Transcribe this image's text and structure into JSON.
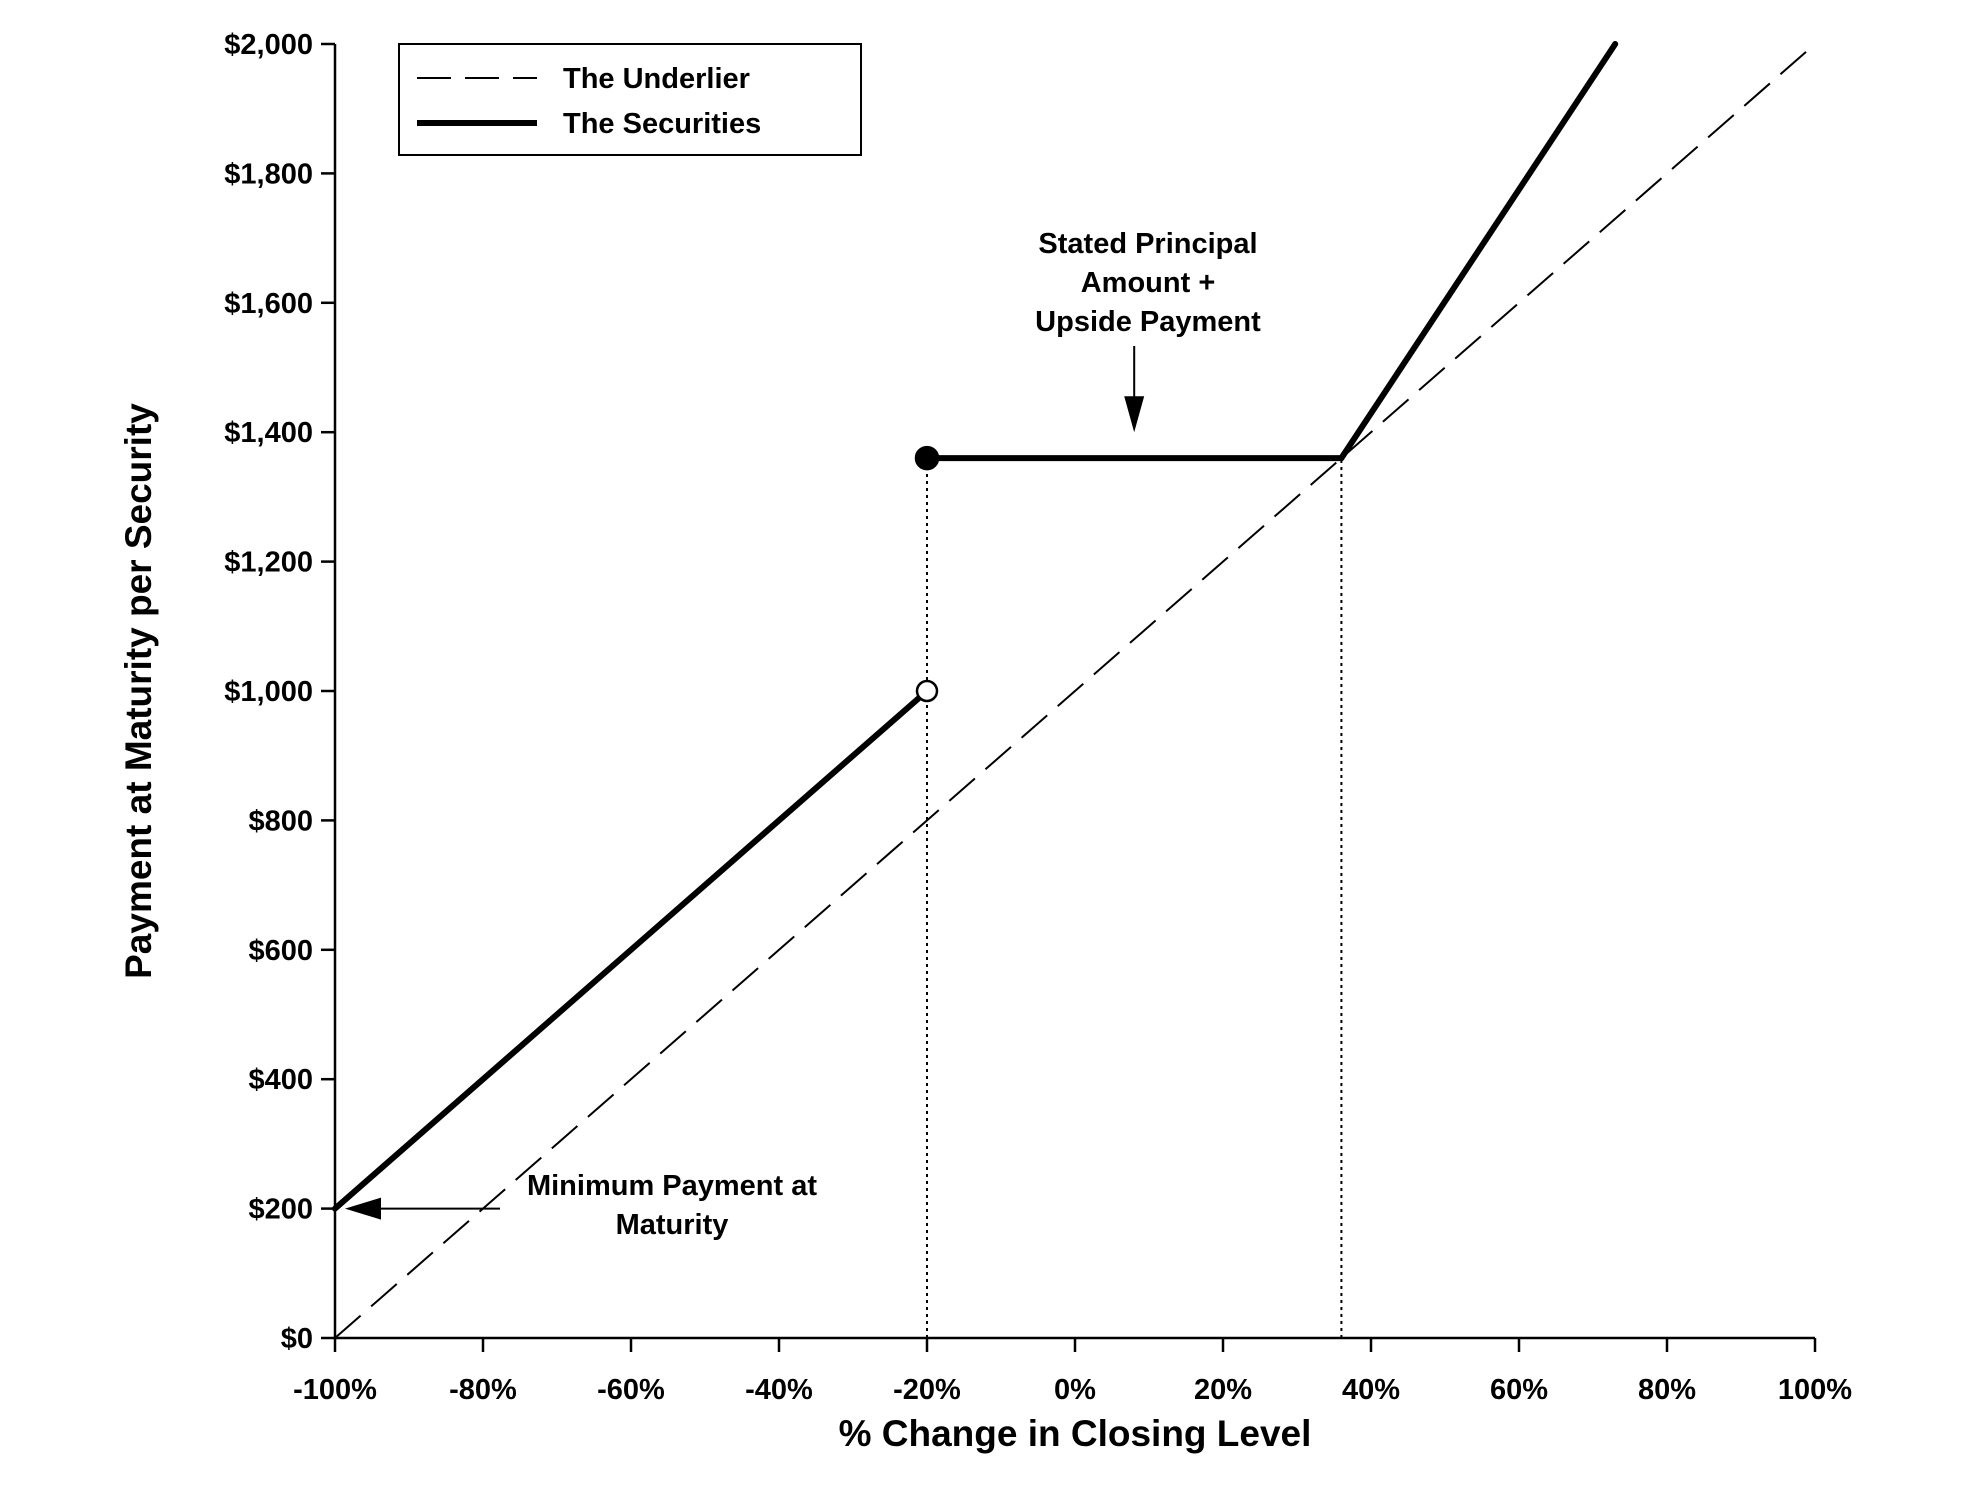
{
  "chart_data": {
    "type": "line",
    "title": "",
    "xlabel": "% Change in Closing Level",
    "ylabel": "Payment at Maturity per Security",
    "xlim": [
      -100,
      100
    ],
    "ylim": [
      0,
      2000
    ],
    "x_ticks": [
      -100,
      -80,
      -60,
      -40,
      -20,
      0,
      20,
      40,
      60,
      80,
      100
    ],
    "x_tick_labels": [
      "-100%",
      "-80%",
      "-60%",
      "-40%",
      "-20%",
      "0%",
      "20%",
      "40%",
      "60%",
      "80%",
      "100%"
    ],
    "y_ticks": [
      0,
      200,
      400,
      600,
      800,
      1000,
      1200,
      1400,
      1600,
      1800,
      2000
    ],
    "y_tick_labels": [
      "$0",
      "$200",
      "$400",
      "$600",
      "$800",
      "$1,000",
      "$1,200",
      "$1,400",
      "$1,600",
      "$1,800",
      "$2,000"
    ],
    "grid": false,
    "legend": {
      "placement": "top-left",
      "entries": [
        {
          "name": "The Underlier",
          "style": "dashed"
        },
        {
          "name": "The Securities",
          "style": "solid-thick"
        }
      ]
    },
    "series": [
      {
        "name": "The Underlier",
        "style": "dashed",
        "x": [
          -100,
          100
        ],
        "y": [
          0,
          2000
        ]
      },
      {
        "name": "The Securities",
        "style": "solid-thick",
        "segments": [
          {
            "x": [
              -100,
              -20
            ],
            "y": [
              200,
              1000
            ]
          },
          {
            "x": [
              -20,
              36
            ],
            "y": [
              1360,
              1360
            ]
          },
          {
            "x": [
              36,
              73
            ],
            "y": [
              1360,
              2000
            ]
          }
        ],
        "markers": [
          {
            "x": -20,
            "y": 1360,
            "fill": "filled"
          },
          {
            "x": -20,
            "y": 1000,
            "fill": "open"
          }
        ]
      }
    ],
    "reference_lines": [
      {
        "x": -20,
        "y_from": 0,
        "y_to": 1360,
        "style": "dotted"
      },
      {
        "x": 36,
        "y_from": 0,
        "y_to": 1360,
        "style": "dotted"
      }
    ],
    "annotations": [
      {
        "lines": [
          "Stated Principal",
          "Amount +",
          "Upside Payment"
        ],
        "arrow_direction": "down",
        "arrow_target": {
          "x": 8,
          "y": 1400
        }
      },
      {
        "lines": [
          "Minimum Payment at",
          "Maturity"
        ],
        "arrow_direction": "left",
        "arrow_target": {
          "x": -100,
          "y": 200
        }
      }
    ],
    "colors": {
      "line": "#000000",
      "background": "#ffffff"
    }
  }
}
